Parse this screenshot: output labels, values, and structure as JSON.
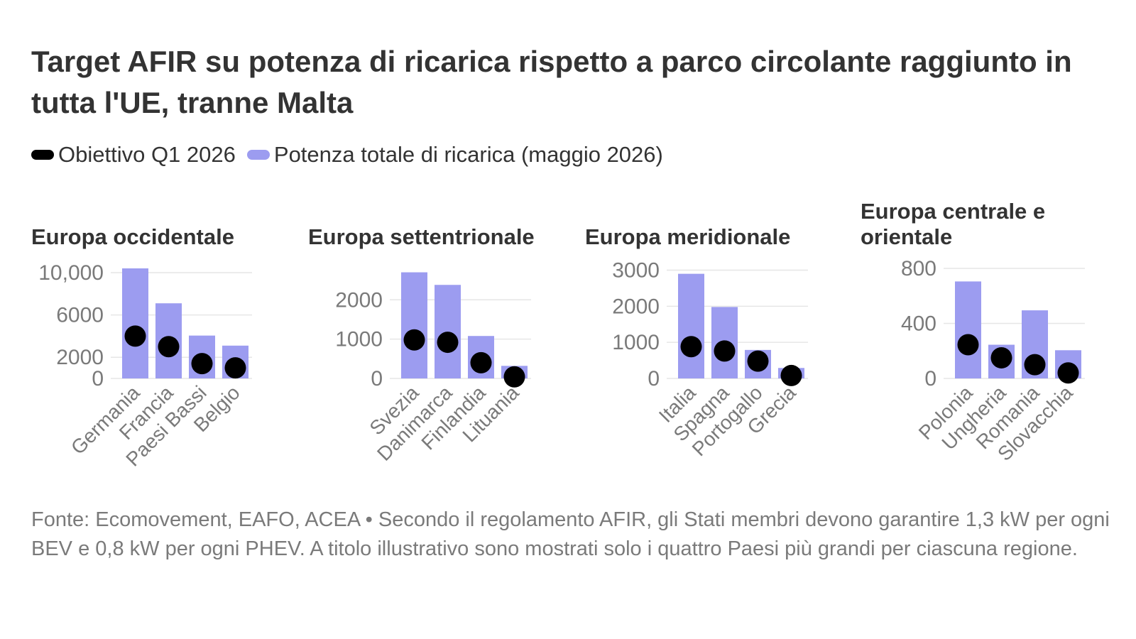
{
  "title": "Target AFIR su potenza di ricarica rispetto a parco circolante raggiunto in tutta l'UE, tranne Malta",
  "legend": [
    {
      "label": "Obiettivo Q1 2026",
      "color": "#000000"
    },
    {
      "label": "Potenza totale di ricarica (maggio 2026)",
      "color": "#9c9cf0"
    }
  ],
  "footer": "Fonte: Ecomovement, EAFO, ACEA • Secondo il regolamento AFIR, gli Stati membri devono garantire 1,3 kW per ogni BEV e 0,8 kW per ogni PHEV. A titolo illustrativo sono mostrati solo i quattro Paesi più grandi per ciascuna regione.",
  "colors": {
    "bar": "#9c9cf0",
    "target": "#000000",
    "axis_text": "#7a7a7a",
    "grid": "#e6e6e6"
  },
  "chart_data": [
    {
      "type": "bar",
      "title": "Europa occidentale",
      "categories": [
        "Germania",
        "Francia",
        "Paesi Bassi",
        "Belgio"
      ],
      "series": [
        {
          "name": "Potenza totale di ricarica (maggio 2026)",
          "values": [
            10400,
            7100,
            4050,
            3100
          ]
        },
        {
          "name": "Obiettivo Q1 2026",
          "values": [
            4000,
            3000,
            1400,
            1000
          ]
        }
      ],
      "ylim": [
        0,
        10400
      ],
      "yticks": [
        0,
        2000,
        6000,
        10000
      ],
      "ytick_labels": [
        "0",
        "2000",
        "6000",
        "10,000"
      ]
    },
    {
      "type": "bar",
      "title": "Europa settentrionale",
      "categories": [
        "Svezia",
        "Danimarca",
        "Finlandia",
        "Lituania"
      ],
      "series": [
        {
          "name": "Potenza totale di ricarica (maggio 2026)",
          "values": [
            2700,
            2380,
            1080,
            320
          ]
        },
        {
          "name": "Obiettivo Q1 2026",
          "values": [
            980,
            920,
            400,
            40
          ]
        }
      ],
      "ylim": [
        0,
        2800
      ],
      "yticks": [
        0,
        1000,
        2000
      ],
      "ytick_labels": [
        "0",
        "1000",
        "2000"
      ]
    },
    {
      "type": "bar",
      "title": "Europa meridionale",
      "categories": [
        "Italia",
        "Spagna",
        "Portogallo",
        "Grecia"
      ],
      "series": [
        {
          "name": "Potenza totale di ricarica (maggio 2026)",
          "values": [
            2900,
            1980,
            790,
            290
          ]
        },
        {
          "name": "Obiettivo Q1 2026",
          "values": [
            880,
            760,
            480,
            80
          ]
        }
      ],
      "ylim": [
        0,
        3050
      ],
      "yticks": [
        0,
        1000,
        2000,
        3000
      ],
      "ytick_labels": [
        "0",
        "1000",
        "2000",
        "3000"
      ]
    },
    {
      "type": "bar",
      "title": "Europa centrale e orientale",
      "categories": [
        "Polonia",
        "Ungheria",
        "Romania",
        "Slovacchia"
      ],
      "series": [
        {
          "name": "Potenza totale di ricarica (maggio 2026)",
          "values": [
            705,
            245,
            495,
            205
          ]
        },
        {
          "name": "Obiettivo Q1 2026",
          "values": [
            245,
            150,
            100,
            40
          ]
        }
      ],
      "ylim": [
        0,
        800
      ],
      "yticks": [
        0,
        400,
        800
      ],
      "ytick_labels": [
        "0",
        "400",
        "800"
      ]
    }
  ]
}
